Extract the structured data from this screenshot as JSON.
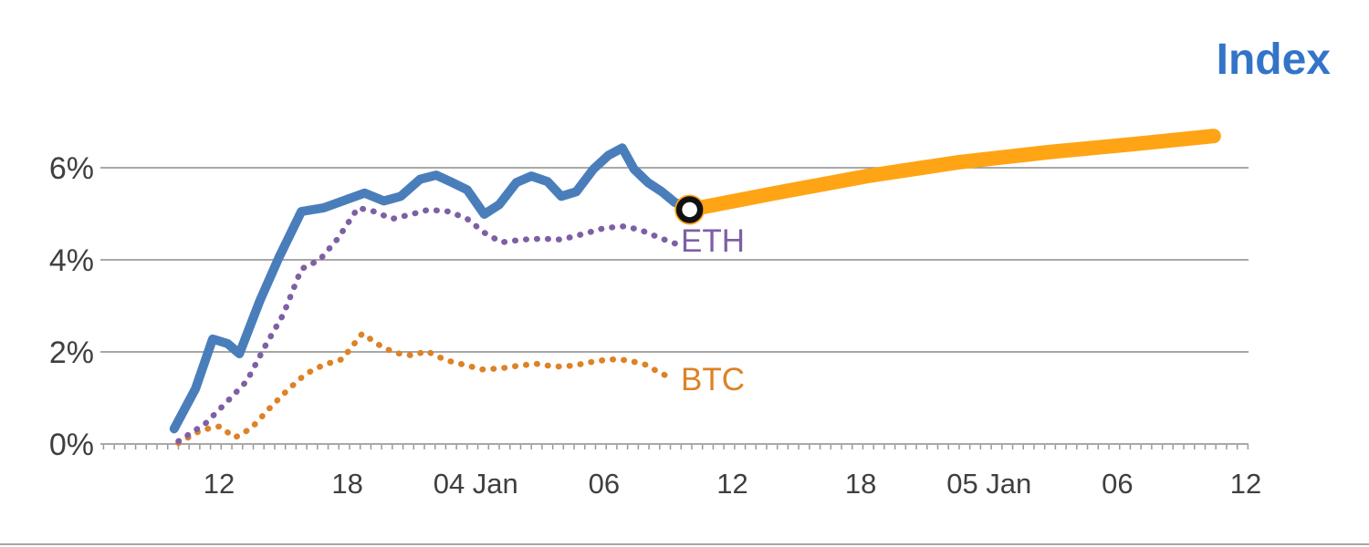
{
  "title": {
    "text": "Index",
    "color": "#3374c9"
  },
  "series_labels": {
    "eth": "ETH",
    "btc": "BTC"
  },
  "colors": {
    "index": "#4a7ebb",
    "forecast": "#ffa414",
    "eth": "#7e5fa5",
    "btc": "#dd8226",
    "grid": "#8c8c8c",
    "minor_tick": "#999999",
    "axis_text": "#3f3f3f",
    "marker_ring": "#111111",
    "marker_fill": "#ffffff"
  },
  "chart_data": {
    "type": "line",
    "title": "Index",
    "xlabel": "",
    "ylabel": "",
    "x_unit": "hours from 03 Jan 12:00",
    "x_range": [
      -5.4,
      48.1
    ],
    "y_range": [
      0,
      7
    ],
    "grid": "horizontal",
    "legend_position": "inline-labels",
    "y_ticks": [
      {
        "value": 0,
        "label": "0%"
      },
      {
        "value": 2,
        "label": "2%"
      },
      {
        "value": 4,
        "label": "4%"
      },
      {
        "value": 6,
        "label": "6%"
      }
    ],
    "x_ticks": [
      {
        "hour": 0,
        "label": "12"
      },
      {
        "hour": 6,
        "label": "18"
      },
      {
        "hour": 12,
        "label": "04 Jan"
      },
      {
        "hour": 18,
        "label": "06"
      },
      {
        "hour": 24,
        "label": "12"
      },
      {
        "hour": 30,
        "label": "18"
      },
      {
        "hour": 36,
        "label": "05 Jan"
      },
      {
        "hour": 42,
        "label": "06"
      },
      {
        "hour": 48,
        "label": "12"
      }
    ],
    "series": [
      {
        "id": "btc",
        "name": "BTC",
        "color": "#dd8226",
        "style": "dotted",
        "width": 6.5,
        "points": [
          [
            -1.9,
            0.02
          ],
          [
            -0.85,
            0.3
          ],
          [
            0.0,
            0.38
          ],
          [
            0.75,
            0.14
          ],
          [
            1.5,
            0.34
          ],
          [
            2.35,
            0.77
          ],
          [
            3.2,
            1.17
          ],
          [
            4.05,
            1.52
          ],
          [
            4.9,
            1.72
          ],
          [
            5.75,
            1.84
          ],
          [
            6.7,
            2.4
          ],
          [
            7.45,
            2.16
          ],
          [
            8.2,
            1.98
          ],
          [
            9.05,
            1.92
          ],
          [
            9.7,
            2.02
          ],
          [
            10.6,
            1.82
          ],
          [
            11.45,
            1.72
          ],
          [
            12.3,
            1.62
          ],
          [
            13.15,
            1.64
          ],
          [
            14.0,
            1.7
          ],
          [
            14.85,
            1.74
          ],
          [
            15.7,
            1.68
          ],
          [
            16.55,
            1.7
          ],
          [
            17.4,
            1.78
          ],
          [
            18.25,
            1.84
          ],
          [
            19.1,
            1.82
          ],
          [
            19.95,
            1.72
          ],
          [
            20.55,
            1.56
          ],
          [
            21.2,
            1.42
          ]
        ]
      },
      {
        "id": "eth",
        "name": "ETH",
        "color": "#7e5fa5",
        "style": "dotted",
        "width": 6.5,
        "points": [
          [
            -1.9,
            0.06
          ],
          [
            -0.65,
            0.44
          ],
          [
            0.4,
            0.93
          ],
          [
            1.3,
            1.37
          ],
          [
            2.15,
            2.12
          ],
          [
            3.0,
            2.81
          ],
          [
            3.85,
            3.8
          ],
          [
            4.7,
            4.0
          ],
          [
            5.55,
            4.46
          ],
          [
            6.5,
            5.13
          ],
          [
            7.25,
            5.05
          ],
          [
            8.1,
            4.89
          ],
          [
            9.0,
            4.99
          ],
          [
            9.8,
            5.09
          ],
          [
            10.75,
            5.05
          ],
          [
            11.6,
            4.89
          ],
          [
            12.4,
            4.59
          ],
          [
            13.2,
            4.38
          ],
          [
            14.2,
            4.44
          ],
          [
            15.1,
            4.46
          ],
          [
            16.0,
            4.44
          ],
          [
            17.1,
            4.57
          ],
          [
            18.0,
            4.69
          ],
          [
            19.0,
            4.73
          ],
          [
            19.8,
            4.63
          ],
          [
            20.7,
            4.46
          ],
          [
            21.4,
            4.34
          ]
        ]
      },
      {
        "id": "index-forecast",
        "name": "Index (forecast)",
        "color": "#ffa414",
        "style": "solid",
        "width": 16,
        "points": [
          [
            22.0,
            5.09
          ],
          [
            26.0,
            5.45
          ],
          [
            30.3,
            5.82
          ],
          [
            34.6,
            6.12
          ],
          [
            38.8,
            6.34
          ],
          [
            42.7,
            6.51
          ],
          [
            46.5,
            6.69
          ]
        ]
      },
      {
        "id": "index-history",
        "name": "Index (history)",
        "color": "#4a7ebb",
        "style": "solid",
        "width": 10,
        "points": [
          [
            -2.1,
            0.33
          ],
          [
            -1.1,
            1.2
          ],
          [
            -0.3,
            2.28
          ],
          [
            0.4,
            2.18
          ],
          [
            0.95,
            1.96
          ],
          [
            1.9,
            3.1
          ],
          [
            2.8,
            4.05
          ],
          [
            3.85,
            5.05
          ],
          [
            4.9,
            5.13
          ],
          [
            5.9,
            5.3
          ],
          [
            6.8,
            5.45
          ],
          [
            7.7,
            5.28
          ],
          [
            8.5,
            5.38
          ],
          [
            9.4,
            5.75
          ],
          [
            10.15,
            5.84
          ],
          [
            10.9,
            5.68
          ],
          [
            11.6,
            5.52
          ],
          [
            12.4,
            4.99
          ],
          [
            13.1,
            5.2
          ],
          [
            13.9,
            5.68
          ],
          [
            14.6,
            5.82
          ],
          [
            15.35,
            5.7
          ],
          [
            16.0,
            5.38
          ],
          [
            16.7,
            5.48
          ],
          [
            17.5,
            5.97
          ],
          [
            18.2,
            6.27
          ],
          [
            18.85,
            6.43
          ],
          [
            19.4,
            5.97
          ],
          [
            20.05,
            5.68
          ],
          [
            20.7,
            5.48
          ],
          [
            21.3,
            5.25
          ],
          [
            22.0,
            5.09
          ]
        ]
      }
    ],
    "marker": {
      "hour": 22.0,
      "value": 5.09,
      "meaning": "forecast start point"
    }
  }
}
